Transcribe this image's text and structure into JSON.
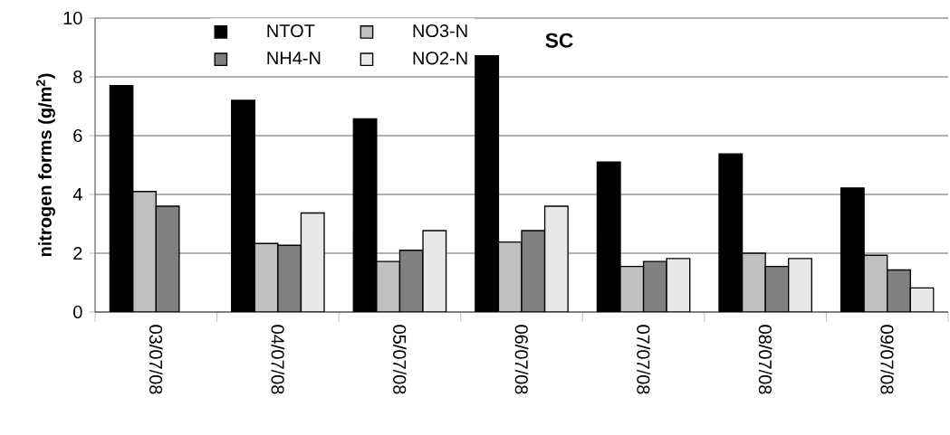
{
  "chart_data": {
    "type": "bar",
    "title": "SC",
    "ylabel": "nitrogen forms (g/m$^{2}$)",
    "categories": [
      "03/07/08",
      "04/07/08",
      "05/07/08",
      "06/07/08",
      "07/07/08",
      "08/07/08",
      "09/07/08"
    ],
    "series": [
      {
        "name": "NTOT",
        "color": "#000000",
        "values": [
          7.7,
          7.2,
          6.57,
          8.72,
          5.1,
          5.38,
          4.22
        ]
      },
      {
        "name": "NO3-N",
        "color": "#c0c0c0",
        "values": [
          4.1,
          2.33,
          1.72,
          2.38,
          1.55,
          2.0,
          1.93
        ]
      },
      {
        "name": "NH4-N",
        "color": "#808080",
        "values": [
          3.6,
          2.27,
          2.1,
          2.77,
          1.72,
          1.55,
          1.43
        ]
      },
      {
        "name": "NO2-N",
        "color": "#e8e8e8",
        "values": [
          null,
          3.37,
          2.77,
          3.6,
          1.82,
          1.82,
          0.82
        ]
      }
    ],
    "ylim": [
      0,
      10
    ],
    "yticks": [
      0,
      2,
      4,
      6,
      8,
      10
    ],
    "grid": "y",
    "legend": "top"
  }
}
